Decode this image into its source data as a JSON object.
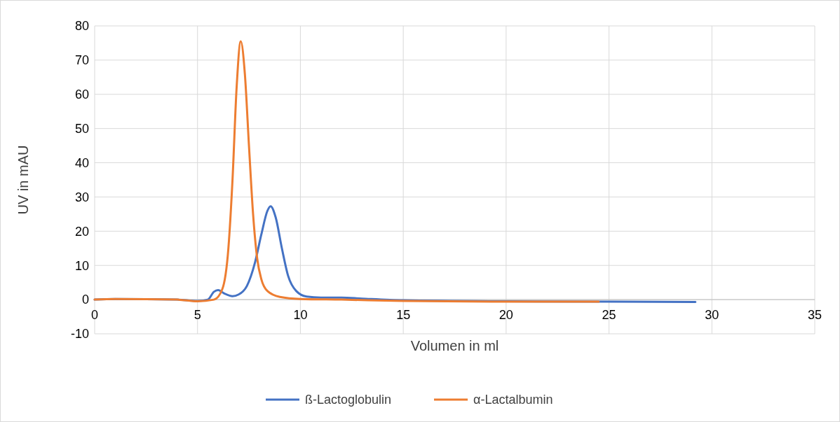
{
  "chart_data": {
    "type": "line",
    "xlabel": "Volumen in ml",
    "ylabel": "UV in mAU",
    "xlim": [
      0,
      35
    ],
    "xticks": [
      0,
      5,
      10,
      15,
      20,
      25,
      30,
      35
    ],
    "ylim": [
      -10,
      80
    ],
    "yticks": [
      -10,
      0,
      10,
      20,
      30,
      40,
      50,
      60,
      70,
      80
    ],
    "grid": true,
    "legend": "bottom",
    "marker": "none",
    "line_style": "solid",
    "series": [
      {
        "name": "ß-Lactoglobulin",
        "color": "#4472c4",
        "x": [
          0,
          1,
          4,
          5,
          5.5,
          5.8,
          6.0,
          6.3,
          6.7,
          7.0,
          7.4,
          7.8,
          8.1,
          8.4,
          8.55,
          8.8,
          9.1,
          9.4,
          9.8,
          10.3,
          11,
          12,
          13,
          15,
          20,
          25,
          29.2
        ],
        "values": [
          0,
          0.2,
          0,
          -0.4,
          0,
          2.3,
          2.8,
          1.8,
          1.0,
          1.5,
          4,
          11,
          19,
          26,
          27.3,
          24,
          15,
          7,
          2.5,
          0.9,
          0.6,
          0.6,
          0.3,
          -0.2,
          -0.5,
          -0.6,
          -0.7
        ]
      },
      {
        "name": "α-Lactalbumin",
        "color": "#ed7d31",
        "x": [
          0,
          1,
          4,
          5,
          5.8,
          6.2,
          6.5,
          6.7,
          6.9,
          7.1,
          7.3,
          7.5,
          7.7,
          7.9,
          8.1,
          8.4,
          9,
          10,
          12,
          15,
          20,
          24.5
        ],
        "values": [
          0,
          0.2,
          0,
          -0.5,
          0,
          3,
          15,
          35,
          62,
          75.5,
          66,
          45,
          25,
          12,
          6,
          2.5,
          0.8,
          0.2,
          0,
          -0.4,
          -0.6,
          -0.6
        ]
      }
    ]
  }
}
